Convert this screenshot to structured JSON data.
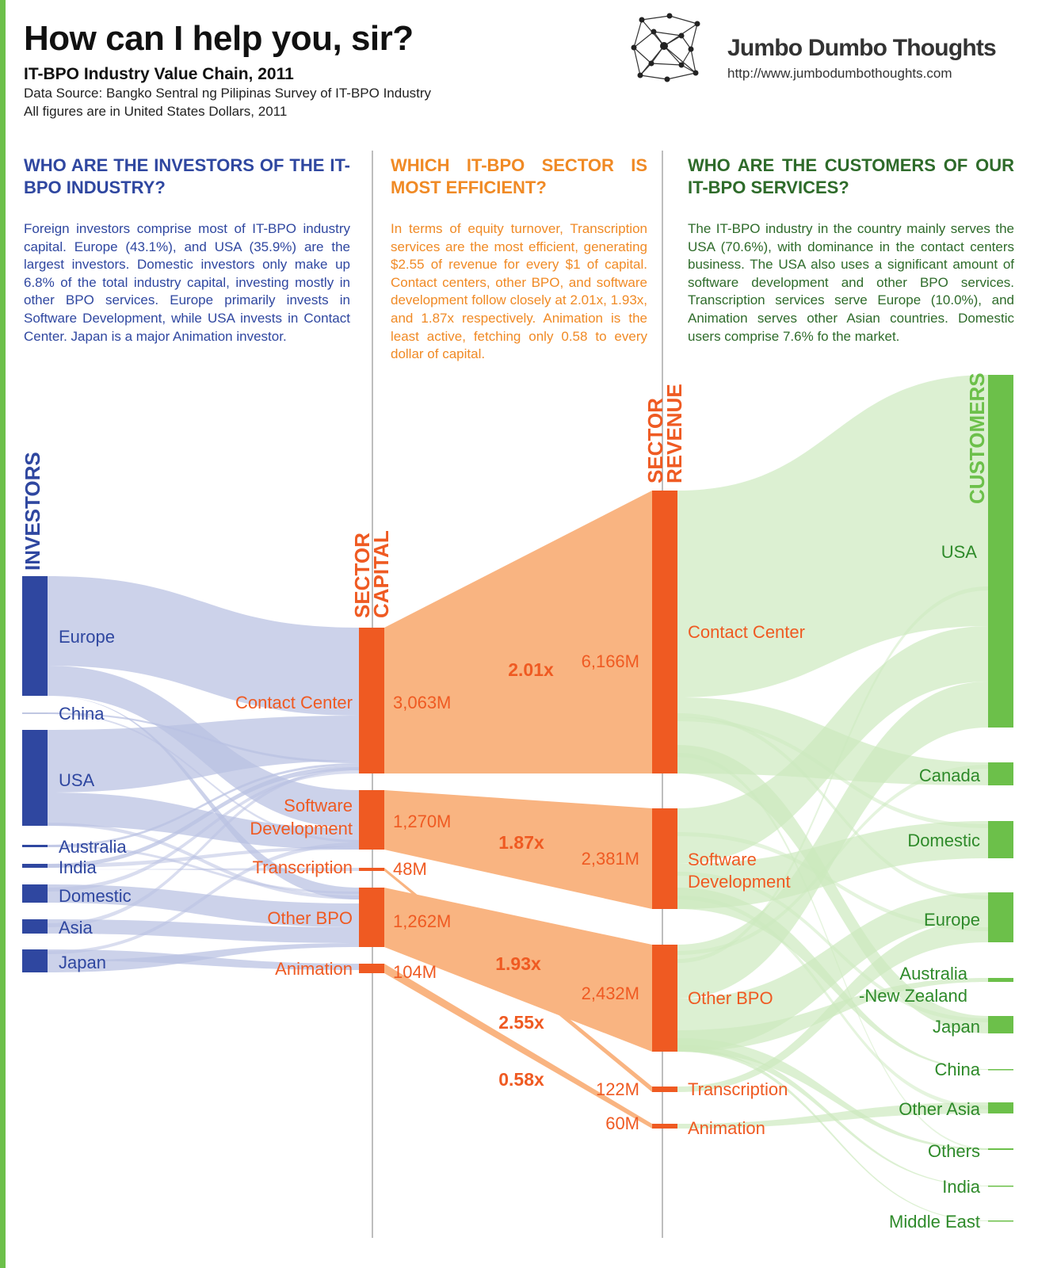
{
  "header": {
    "title": "How can I help you, sir?",
    "subtitle": "IT-BPO Industry Value Chain, 2011",
    "source": "Data Source: Bangko Sentral ng Pilipinas Survey of IT-BPO Industry",
    "note": "All figures are in United States Dollars, 2011",
    "brand": "Jumbo Dumbo Thoughts",
    "brand_url": "http://www.jumbodumbothoughts.com",
    "brand_icon": "network-logo-icon"
  },
  "colors": {
    "investors": "#2f47a0",
    "sector": "#ef5a22",
    "customers": "#6cc04a",
    "investor_flow": "#b9c1e2",
    "sector_flow": "#f9b481",
    "customer_flow": "#cbe9bd"
  },
  "columns": {
    "investors": {
      "heading": "WHO ARE THE INVESTORS OF THE IT-BPO INDUSTRY?",
      "text": "Foreign investors comprise most of IT-BPO industry capital. Europe (43.1%), and USA (35.9%) are the largest investors. Domestic investors only make up 6.8% of the total industry capital, investing mostly in other BPO services. Europe primarily invests in Software Development, while USA invests in Contact Center. Japan is a major Animation investor."
    },
    "sectors": {
      "heading": "WHICH IT-BPO SECTOR IS MOST EFFICIENT?",
      "text": "In terms of equity turnover, Transcription services are the most efficient, generating $2.55 of revenue for every $1 of capital. Contact centers, other BPO, and software development follow closely at 2.01x, 1.93x, and 1.87x respectively. Animation is the least active, fetching only 0.58 to every dollar of capital."
    },
    "customers": {
      "heading": "WHO ARE THE CUSTOMERS OF OUR IT-BPO SERVICES?",
      "text": "The IT-BPO industry in the country mainly serves the USA (70.6%), with dominance in the contact centers business. The USA also uses a significant amount of software development and other BPO services. Transcription services serve Europe (10.0%), and Animation serves other Asian countries. Domestic users comprise 7.6% fo the market."
    }
  },
  "chart_data": {
    "type": "sankey",
    "axis_labels": {
      "investors": "INVESTORS",
      "capital": [
        "SECTOR",
        "CAPITAL"
      ],
      "revenue": [
        "SECTOR",
        "REVENUE"
      ],
      "customers": "CUSTOMERS"
    },
    "investors": [
      "Europe",
      "China",
      "USA",
      "Australia",
      "India",
      "Domestic",
      "Asia",
      "Japan"
    ],
    "investor_share_pct": {
      "Europe": 43.1,
      "USA": 35.9,
      "Domestic": 6.8
    },
    "sectors": [
      {
        "name": "Contact Center",
        "capital": "3,063M",
        "revenue": "6,166M",
        "turnover": "2.01x",
        "capital_value": 3063,
        "revenue_value": 6166
      },
      {
        "name": "Software Development",
        "capital": "1,270M",
        "revenue": "2,381M",
        "turnover": "1.87x",
        "capital_value": 1270,
        "revenue_value": 2381
      },
      {
        "name": "Transcription",
        "capital": "48M",
        "revenue": "122M",
        "turnover": "2.55x",
        "capital_value": 48,
        "revenue_value": 122
      },
      {
        "name": "Other BPO",
        "capital": "1,262M",
        "revenue": "2,432M",
        "turnover": "1.93x",
        "capital_value": 1262,
        "revenue_value": 2432
      },
      {
        "name": "Animation",
        "capital": "104M",
        "revenue": "60M",
        "turnover": "0.58x",
        "capital_value": 104,
        "revenue_value": 60
      }
    ],
    "customers": [
      "USA",
      "Canada",
      "Domestic",
      "Europe",
      "Australia -New Zealand",
      "Japan",
      "China",
      "Other Asia",
      "Others",
      "India",
      "Middle East"
    ],
    "customer_share_pct": {
      "USA": 70.6,
      "Europe": 10.0,
      "Domestic": 7.6
    }
  }
}
